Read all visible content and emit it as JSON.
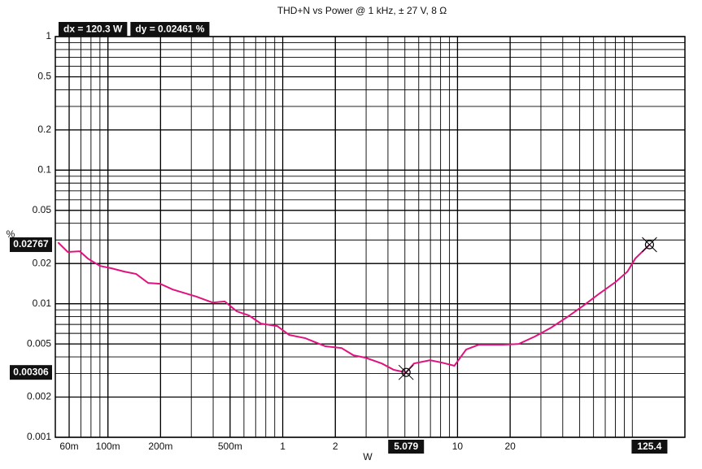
{
  "chart_data": {
    "type": "line",
    "title": "THD+N vs Power @ 1 kHz, ± 27 V, 8 Ω",
    "x_label": "W",
    "y_label": "%",
    "x_log": true,
    "y_log": true,
    "grid": true,
    "minor_grid": true,
    "color": "#e0137e",
    "xlim": [
      0.05,
      200
    ],
    "ylim": [
      0.001,
      1
    ],
    "xticks": [
      {
        "value": 0.06,
        "label": "60m"
      },
      {
        "value": 0.1,
        "label": "100m"
      },
      {
        "value": 0.2,
        "label": "200m"
      },
      {
        "value": 0.5,
        "label": "500m"
      },
      1,
      2,
      10,
      20
    ],
    "yticks": [
      0.001,
      0.002,
      0.005,
      0.01,
      0.02,
      0.05,
      0.1,
      0.2,
      0.5,
      1
    ],
    "x": [
      0.0518,
      0.0589,
      0.069,
      0.0767,
      0.0899,
      0.105,
      0.124,
      0.145,
      0.17,
      0.199,
      0.234,
      0.321,
      0.397,
      0.466,
      0.546,
      0.64,
      0.751,
      0.929,
      1.089,
      1.346,
      1.754,
      2.17,
      2.54,
      2.98,
      3.69,
      4.32,
      5.079,
      5.64,
      6.97,
      8.17,
      9.59,
      11.2,
      13.2,
      18.1,
      22.4,
      27.7,
      34.3,
      42.4,
      52.4,
      64.7,
      80.0,
      93.8,
      104,
      125.4
    ],
    "values": [
      0.0288,
      0.0244,
      0.0247,
      0.0218,
      0.0192,
      0.0184,
      0.0174,
      0.0167,
      0.0143,
      0.0141,
      0.0128,
      0.0113,
      0.0102,
      0.0104,
      0.00877,
      0.00817,
      0.0071,
      0.00681,
      0.00584,
      0.00552,
      0.0048,
      0.00466,
      0.00411,
      0.00394,
      0.00357,
      0.0032,
      0.00306,
      0.00357,
      0.00378,
      0.00362,
      0.00343,
      0.00454,
      0.00493,
      0.00493,
      0.005,
      0.00568,
      0.00662,
      0.00794,
      0.00966,
      0.0119,
      0.0145,
      0.0174,
      0.0218,
      0.02767
    ],
    "cursors": [
      {
        "x": 5.079,
        "y": 0.00306
      },
      {
        "x": 125.4,
        "y": 0.02767
      }
    ],
    "readouts": [
      "dx = 120.3 W",
      "dy = 0.02461 %"
    ]
  }
}
